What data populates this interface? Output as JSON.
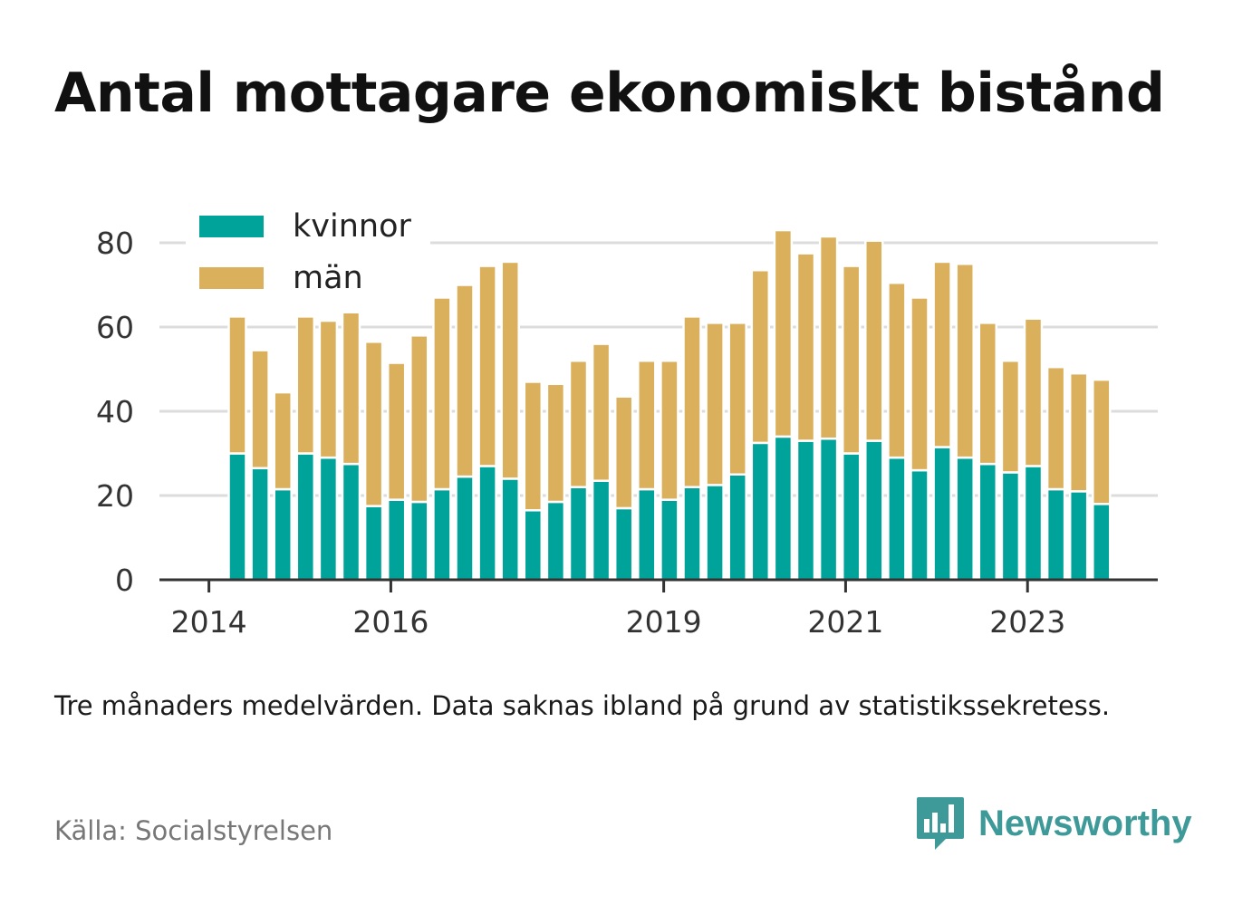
{
  "title": "Antal mottagare ekonomiskt bistånd",
  "note": "Tre månaders medelvärden. Data saknas ibland på grund av statistikssekretess.",
  "source": "Källa: Socialstyrelsen",
  "logo": {
    "text": "Newsworthy",
    "icon": "bar-chart-speech-bubble-icon",
    "color": "#3e9a98"
  },
  "chart_data": {
    "type": "bar",
    "stacked": true,
    "grid": true,
    "legend_position": "top-left",
    "ylim": [
      0,
      85
    ],
    "yticks": [
      0,
      20,
      40,
      60,
      80
    ],
    "x_ticks": [
      "2014",
      "2016",
      "2019",
      "2021",
      "2023"
    ],
    "x_tick_indices": [
      -1.25,
      6.75,
      18.75,
      26.75,
      34.75
    ],
    "series": [
      {
        "name": "kvinnor",
        "color": "#00a39a",
        "values": [
          30,
          26.5,
          21.5,
          30,
          29,
          27.5,
          17.5,
          19,
          18.5,
          21.5,
          24.5,
          27,
          24,
          16.5,
          18.5,
          22,
          23.5,
          17,
          21.5,
          19,
          22,
          22.5,
          25,
          32.5,
          34,
          33,
          33.5,
          30,
          33,
          29,
          26,
          31.5,
          29,
          27.5,
          25.5,
          27,
          21.5,
          21,
          18
        ]
      },
      {
        "name": "män",
        "color": "#dbb05c",
        "values": [
          32.5,
          28,
          23,
          32.5,
          32.5,
          36,
          39,
          32.5,
          39.5,
          45.5,
          45.5,
          47.5,
          51.5,
          30.5,
          28,
          30,
          32.5,
          26.5,
          30.5,
          33,
          40.5,
          38.5,
          36,
          41,
          49,
          44.5,
          48,
          44.5,
          47.5,
          41.5,
          41,
          44,
          46,
          33.5,
          26.5,
          35,
          29,
          28,
          29.5
        ]
      }
    ]
  }
}
